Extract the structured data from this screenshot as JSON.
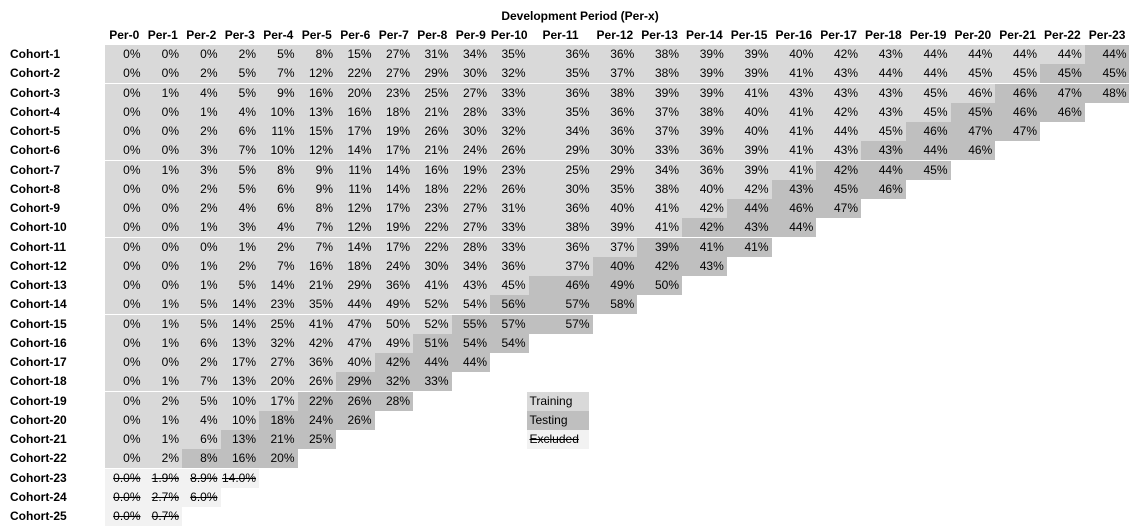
{
  "title": "Development Period (Per-x)",
  "columns": [
    "Per-0",
    "Per-1",
    "Per-2",
    "Per-3",
    "Per-4",
    "Per-5",
    "Per-6",
    "Per-7",
    "Per-8",
    "Per-9",
    "Per-10",
    "Per-11",
    "Per-12",
    "Per-13",
    "Per-14",
    "Per-15",
    "Per-16",
    "Per-17",
    "Per-18",
    "Per-19",
    "Per-20",
    "Per-21",
    "Per-22",
    "Per-23"
  ],
  "legend": [
    "Training",
    "Testing",
    "Excluded"
  ],
  "rows": [
    {
      "label": "Cohort-1",
      "cells": [
        "0%",
        "0%",
        "0%",
        "2%",
        "5%",
        "8%",
        "15%",
        "27%",
        "31%",
        "34%",
        "35%",
        "36%",
        "36%",
        "38%",
        "39%",
        "39%",
        "40%",
        "42%",
        "43%",
        "44%",
        "44%",
        "44%",
        "44%",
        "44%"
      ],
      "sets": [
        0,
        0,
        0,
        0,
        0,
        0,
        0,
        0,
        0,
        0,
        0,
        0,
        0,
        0,
        0,
        0,
        0,
        0,
        0,
        0,
        0,
        0,
        0,
        1
      ]
    },
    {
      "label": "Cohort-2",
      "cells": [
        "0%",
        "0%",
        "2%",
        "5%",
        "7%",
        "12%",
        "22%",
        "27%",
        "29%",
        "30%",
        "32%",
        "35%",
        "37%",
        "38%",
        "39%",
        "39%",
        "41%",
        "43%",
        "44%",
        "44%",
        "45%",
        "45%",
        "45%",
        "45%"
      ],
      "sets": [
        0,
        0,
        0,
        0,
        0,
        0,
        0,
        0,
        0,
        0,
        0,
        0,
        0,
        0,
        0,
        0,
        0,
        0,
        0,
        0,
        0,
        0,
        1,
        1
      ]
    },
    {
      "label": "Cohort-3",
      "cells": [
        "0%",
        "1%",
        "4%",
        "5%",
        "9%",
        "16%",
        "20%",
        "23%",
        "25%",
        "27%",
        "33%",
        "36%",
        "38%",
        "39%",
        "39%",
        "41%",
        "43%",
        "43%",
        "43%",
        "45%",
        "46%",
        "46%",
        "47%",
        "48%"
      ],
      "sets": [
        0,
        0,
        0,
        0,
        0,
        0,
        0,
        0,
        0,
        0,
        0,
        0,
        0,
        0,
        0,
        0,
        0,
        0,
        0,
        0,
        0,
        1,
        1,
        1
      ]
    },
    {
      "label": "Cohort-4",
      "cells": [
        "0%",
        "0%",
        "1%",
        "4%",
        "10%",
        "13%",
        "16%",
        "18%",
        "21%",
        "28%",
        "33%",
        "35%",
        "36%",
        "37%",
        "38%",
        "40%",
        "41%",
        "42%",
        "43%",
        "45%",
        "45%",
        "46%",
        "46%"
      ],
      "sets": [
        0,
        0,
        0,
        0,
        0,
        0,
        0,
        0,
        0,
        0,
        0,
        0,
        0,
        0,
        0,
        0,
        0,
        0,
        0,
        0,
        1,
        1,
        1
      ]
    },
    {
      "label": "Cohort-5",
      "cells": [
        "0%",
        "0%",
        "2%",
        "6%",
        "11%",
        "15%",
        "17%",
        "19%",
        "26%",
        "30%",
        "32%",
        "34%",
        "36%",
        "37%",
        "39%",
        "40%",
        "41%",
        "44%",
        "45%",
        "46%",
        "47%",
        "47%"
      ],
      "sets": [
        0,
        0,
        0,
        0,
        0,
        0,
        0,
        0,
        0,
        0,
        0,
        0,
        0,
        0,
        0,
        0,
        0,
        0,
        0,
        1,
        1,
        1
      ]
    },
    {
      "label": "Cohort-6",
      "cells": [
        "0%",
        "0%",
        "3%",
        "7%",
        "10%",
        "12%",
        "14%",
        "17%",
        "21%",
        "24%",
        "26%",
        "29%",
        "30%",
        "33%",
        "36%",
        "39%",
        "41%",
        "43%",
        "43%",
        "44%",
        "46%"
      ],
      "sets": [
        0,
        0,
        0,
        0,
        0,
        0,
        0,
        0,
        0,
        0,
        0,
        0,
        0,
        0,
        0,
        0,
        0,
        0,
        1,
        1,
        1
      ]
    },
    {
      "label": "Cohort-7",
      "cells": [
        "0%",
        "1%",
        "3%",
        "5%",
        "8%",
        "9%",
        "11%",
        "14%",
        "16%",
        "19%",
        "23%",
        "25%",
        "29%",
        "34%",
        "36%",
        "39%",
        "41%",
        "42%",
        "44%",
        "45%"
      ],
      "sets": [
        0,
        0,
        0,
        0,
        0,
        0,
        0,
        0,
        0,
        0,
        0,
        0,
        0,
        0,
        0,
        0,
        0,
        1,
        1,
        1
      ]
    },
    {
      "label": "Cohort-8",
      "cells": [
        "0%",
        "0%",
        "2%",
        "5%",
        "6%",
        "9%",
        "11%",
        "14%",
        "18%",
        "22%",
        "26%",
        "30%",
        "35%",
        "38%",
        "40%",
        "42%",
        "43%",
        "45%",
        "46%"
      ],
      "sets": [
        0,
        0,
        0,
        0,
        0,
        0,
        0,
        0,
        0,
        0,
        0,
        0,
        0,
        0,
        0,
        0,
        1,
        1,
        1
      ]
    },
    {
      "label": "Cohort-9",
      "cells": [
        "0%",
        "0%",
        "2%",
        "4%",
        "6%",
        "8%",
        "12%",
        "17%",
        "23%",
        "27%",
        "31%",
        "36%",
        "40%",
        "41%",
        "42%",
        "44%",
        "46%",
        "47%"
      ],
      "sets": [
        0,
        0,
        0,
        0,
        0,
        0,
        0,
        0,
        0,
        0,
        0,
        0,
        0,
        0,
        0,
        1,
        1,
        1
      ]
    },
    {
      "label": "Cohort-10",
      "cells": [
        "0%",
        "0%",
        "1%",
        "3%",
        "4%",
        "7%",
        "12%",
        "19%",
        "22%",
        "27%",
        "33%",
        "38%",
        "39%",
        "41%",
        "42%",
        "43%",
        "44%"
      ],
      "sets": [
        0,
        0,
        0,
        0,
        0,
        0,
        0,
        0,
        0,
        0,
        0,
        0,
        0,
        0,
        1,
        1,
        1
      ]
    },
    {
      "label": "Cohort-11",
      "cells": [
        "0%",
        "0%",
        "0%",
        "1%",
        "2%",
        "7%",
        "14%",
        "17%",
        "22%",
        "28%",
        "33%",
        "36%",
        "37%",
        "39%",
        "41%",
        "41%"
      ],
      "sets": [
        0,
        0,
        0,
        0,
        0,
        0,
        0,
        0,
        0,
        0,
        0,
        0,
        0,
        1,
        1,
        1
      ]
    },
    {
      "label": "Cohort-12",
      "cells": [
        "0%",
        "0%",
        "1%",
        "2%",
        "7%",
        "16%",
        "18%",
        "24%",
        "30%",
        "34%",
        "36%",
        "37%",
        "40%",
        "42%",
        "43%"
      ],
      "sets": [
        0,
        0,
        0,
        0,
        0,
        0,
        0,
        0,
        0,
        0,
        0,
        0,
        1,
        1,
        1
      ]
    },
    {
      "label": "Cohort-13",
      "cells": [
        "0%",
        "0%",
        "1%",
        "5%",
        "14%",
        "21%",
        "29%",
        "36%",
        "41%",
        "43%",
        "45%",
        "46%",
        "49%",
        "50%"
      ],
      "sets": [
        0,
        0,
        0,
        0,
        0,
        0,
        0,
        0,
        0,
        0,
        0,
        1,
        1,
        1
      ]
    },
    {
      "label": "Cohort-14",
      "cells": [
        "0%",
        "1%",
        "5%",
        "14%",
        "23%",
        "35%",
        "44%",
        "49%",
        "52%",
        "54%",
        "56%",
        "57%",
        "58%"
      ],
      "sets": [
        0,
        0,
        0,
        0,
        0,
        0,
        0,
        0,
        0,
        0,
        1,
        1,
        1
      ]
    },
    {
      "label": "Cohort-15",
      "cells": [
        "0%",
        "1%",
        "5%",
        "14%",
        "25%",
        "41%",
        "47%",
        "50%",
        "52%",
        "55%",
        "57%",
        "57%"
      ],
      "sets": [
        0,
        0,
        0,
        0,
        0,
        0,
        0,
        0,
        0,
        1,
        1,
        1
      ]
    },
    {
      "label": "Cohort-16",
      "cells": [
        "0%",
        "1%",
        "6%",
        "13%",
        "32%",
        "42%",
        "47%",
        "49%",
        "51%",
        "54%",
        "54%"
      ],
      "sets": [
        0,
        0,
        0,
        0,
        0,
        0,
        0,
        0,
        1,
        1,
        1
      ]
    },
    {
      "label": "Cohort-17",
      "cells": [
        "0%",
        "0%",
        "2%",
        "17%",
        "27%",
        "36%",
        "40%",
        "42%",
        "44%",
        "44%"
      ],
      "sets": [
        0,
        0,
        0,
        0,
        0,
        0,
        0,
        1,
        1,
        1
      ]
    },
    {
      "label": "Cohort-18",
      "cells": [
        "0%",
        "1%",
        "7%",
        "13%",
        "20%",
        "26%",
        "29%",
        "32%",
        "33%"
      ],
      "sets": [
        0,
        0,
        0,
        0,
        0,
        0,
        1,
        1,
        1
      ]
    },
    {
      "label": "Cohort-19",
      "cells": [
        "0%",
        "2%",
        "5%",
        "10%",
        "17%",
        "22%",
        "26%",
        "28%"
      ],
      "sets": [
        0,
        0,
        0,
        0,
        0,
        1,
        1,
        1
      ]
    },
    {
      "label": "Cohort-20",
      "cells": [
        "0%",
        "1%",
        "4%",
        "10%",
        "18%",
        "24%",
        "26%"
      ],
      "sets": [
        0,
        0,
        0,
        0,
        1,
        1,
        1
      ]
    },
    {
      "label": "Cohort-21",
      "cells": [
        "0%",
        "1%",
        "6%",
        "13%",
        "21%",
        "25%"
      ],
      "sets": [
        0,
        0,
        0,
        1,
        1,
        1
      ]
    },
    {
      "label": "Cohort-22",
      "cells": [
        "0%",
        "2%",
        "8%",
        "16%",
        "20%"
      ],
      "sets": [
        0,
        0,
        1,
        1,
        1
      ]
    },
    {
      "label": "Cohort-23",
      "cells": [
        "0.0%",
        "1.9%",
        "8.9%",
        "14.0%"
      ],
      "sets": [
        2,
        2,
        2,
        2
      ]
    },
    {
      "label": "Cohort-24",
      "cells": [
        "0.0%",
        "2.7%",
        "6.0%"
      ],
      "sets": [
        2,
        2,
        2
      ]
    },
    {
      "label": "Cohort-25",
      "cells": [
        "0.0%",
        "0.7%"
      ],
      "sets": [
        2,
        2
      ]
    }
  ]
}
